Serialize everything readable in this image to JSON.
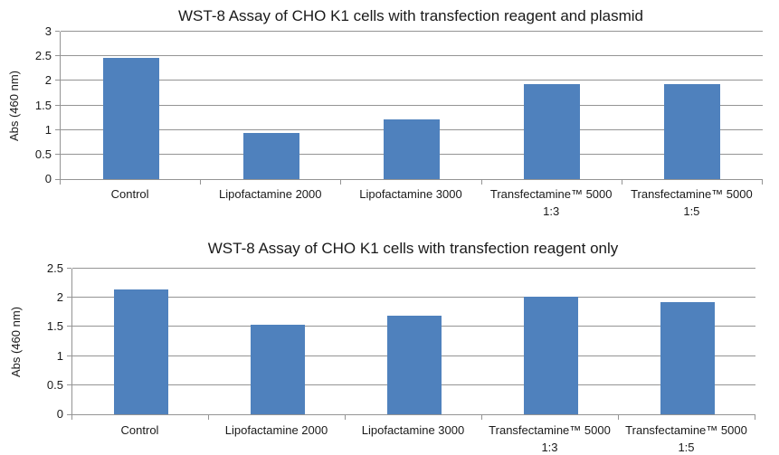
{
  "colors": {
    "bar_fill": "#4f81bd",
    "gridline": "#949494",
    "axis_line": "#949494",
    "text": "#1a1a1a",
    "background": "#ffffff"
  },
  "chart_data": [
    {
      "type": "bar",
      "title": "WST-8 Assay of CHO K1 cells with transfection reagent and plasmid",
      "xlabel": "",
      "ylabel": "Abs (460 nm)",
      "categories": [
        "Control",
        "Lipofactamine 2000",
        "Lipofactamine 3000",
        "Transfectamine™ 5000\n1:3",
        "Transfectamine™ 5000\n1:5"
      ],
      "values": [
        2.46,
        0.94,
        1.22,
        1.93,
        1.93
      ],
      "ylim": [
        0,
        3
      ],
      "ytick_step": 0.5,
      "ytick_labels": [
        "0",
        "0.5",
        "1",
        "1.5",
        "2",
        "2.5",
        "3"
      ],
      "grid": true,
      "legend": "none",
      "bar_color": "#4f81bd"
    },
    {
      "type": "bar",
      "title": "WST-8 Assay of CHO K1 cells with transfection reagent only",
      "xlabel": "",
      "ylabel": "Abs (460 nm)",
      "categories": [
        "Control",
        "Lipofactamine 2000",
        "Lipofactamine 3000",
        "Transfectamine™ 5000\n1:3",
        "Transfectamine™ 5000\n1:5"
      ],
      "values": [
        2.15,
        1.53,
        1.7,
        2.02,
        1.92
      ],
      "ylim": [
        0,
        2.5
      ],
      "ytick_step": 0.5,
      "ytick_labels": [
        "0",
        "0.5",
        "1",
        "1.5",
        "2",
        "2.5"
      ],
      "grid": true,
      "legend": "none",
      "bar_color": "#4f81bd"
    }
  ]
}
